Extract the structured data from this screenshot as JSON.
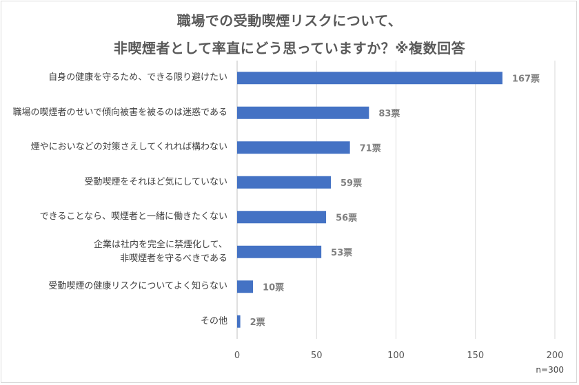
{
  "chart_data": {
    "type": "bar",
    "orientation": "horizontal",
    "title_line1": "職場での受動喫煙リスクについて、",
    "title_line2": "非喫煙者として率直にどう思っていますか？※複数回答",
    "categories": [
      {
        "lines": [
          "自身の健康を守るため、できる限り避けたい"
        ]
      },
      {
        "lines": [
          "職場の喫煙者のせいで傾向被害を被るのは迷惑である"
        ]
      },
      {
        "lines": [
          "煙やにおいなどの対策さえしてくれれば構わない"
        ]
      },
      {
        "lines": [
          "受動喫煙をそれほど気にしていない"
        ]
      },
      {
        "lines": [
          "できることなら、喫煙者と一緒に働きたくない"
        ]
      },
      {
        "lines": [
          "企業は社内を完全に禁煙化して、",
          "非喫煙者を守るべきである"
        ]
      },
      {
        "lines": [
          "受動喫煙の健康リスクについてよく知らない"
        ]
      },
      {
        "lines": [
          "その他"
        ]
      }
    ],
    "values": [
      167,
      83,
      71,
      59,
      56,
      53,
      10,
      2
    ],
    "value_labels": [
      "167票",
      "83票",
      "71票",
      "59票",
      "56票",
      "53票",
      "10票",
      "2票"
    ],
    "xlim": [
      0,
      200
    ],
    "xticks": [
      "0",
      "50",
      "100",
      "150",
      "200"
    ],
    "grid": "vertical",
    "bar_color": "#4472c4",
    "grid_color": "#d9d9d9",
    "note": "n=300"
  }
}
